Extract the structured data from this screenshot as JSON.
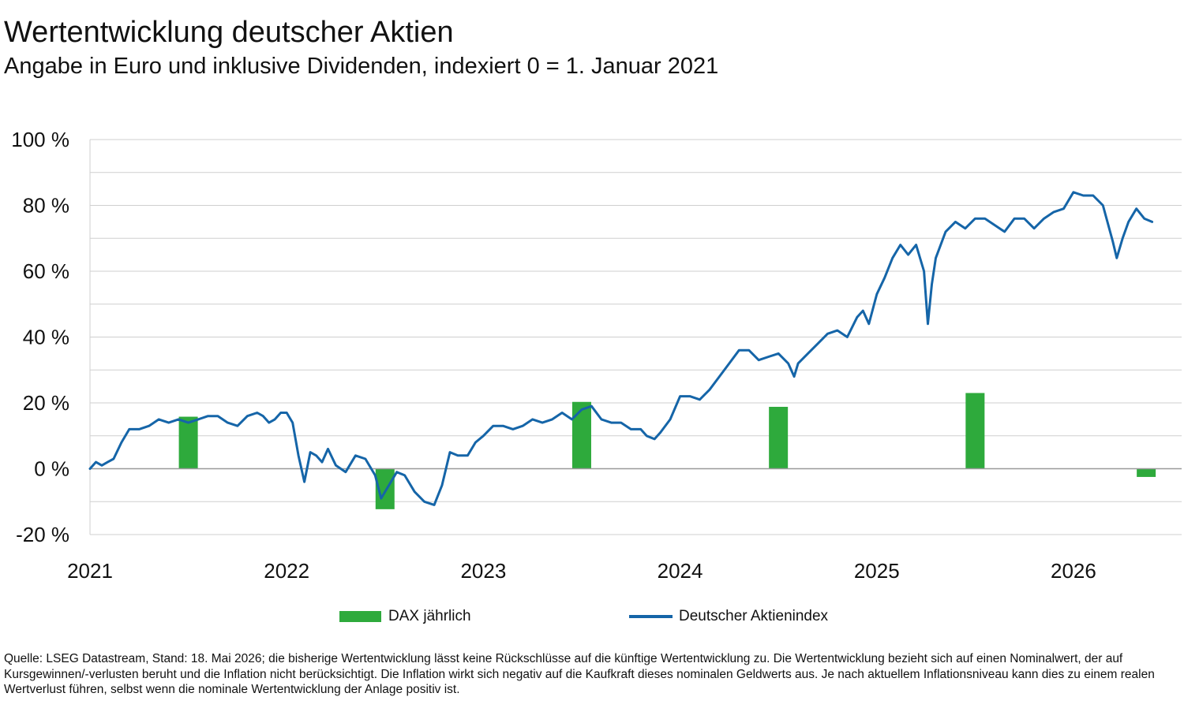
{
  "title": "Wertentwicklung deutscher Aktien",
  "subtitle": "Angabe in Euro und inklusive Dividenden, indexiert 0 = 1. Januar 2021",
  "footnote": "Quelle: LSEG Datastream, Stand: 18. Mai 2026; die bisherige Wertentwicklung lässt keine Rückschlüsse auf die künftige Wertentwicklung zu. Die Wertentwicklung bezieht sich auf einen Nominalwert, der auf Kursgewinnen/-verlusten beruht und die Inflation nicht berücksichtigt. Die Inflation wirkt sich negativ auf die Kaufkraft dieses nominalen Geldwerts aus. Je nach aktuellem Inflationsniveau kann dies zu einem realen Wertverlust führen, selbst wenn die nominale Wertentwicklung der Anlage positiv ist.",
  "legend": {
    "bar_label": "DAX jährlich",
    "line_label": "Deutscher Aktienindex"
  },
  "colors": {
    "bar": "#2eaa3c",
    "line": "#1565a8",
    "grid": "#cfcfcf",
    "zero_line": "#9a9a9a"
  },
  "chart_data": {
    "type": "bar+line",
    "y_unit": "%",
    "ylim": [
      -20,
      100
    ],
    "yticks": [
      -20,
      0,
      20,
      40,
      60,
      80,
      100
    ],
    "ytick_labels": [
      "-20 %",
      "0 %",
      "20 %",
      "40 %",
      "60 %",
      "80 %",
      "100 %"
    ],
    "xlim": [
      2021.0,
      2026.55
    ],
    "xtick_labels": [
      "2021",
      "2022",
      "2023",
      "2024",
      "2025",
      "2026"
    ],
    "grid": true,
    "legend_position": "bottom",
    "bars": {
      "name": "DAX jährlich",
      "x": [
        2021.5,
        2022.5,
        2023.5,
        2024.5,
        2025.5,
        2026.37
      ],
      "values": [
        15.8,
        -12.3,
        20.3,
        18.8,
        23.0,
        -2.5
      ]
    },
    "line": {
      "name": "Deutscher Aktienindex",
      "x": [
        2021.0,
        2021.03,
        2021.06,
        2021.09,
        2021.12,
        2021.16,
        2021.2,
        2021.25,
        2021.3,
        2021.35,
        2021.4,
        2021.45,
        2021.5,
        2021.55,
        2021.6,
        2021.65,
        2021.7,
        2021.75,
        2021.8,
        2021.85,
        2021.88,
        2021.91,
        2021.94,
        2021.97,
        2022.0,
        2022.03,
        2022.06,
        2022.09,
        2022.12,
        2022.15,
        2022.18,
        2022.21,
        2022.25,
        2022.3,
        2022.35,
        2022.4,
        2022.45,
        2022.48,
        2022.52,
        2022.56,
        2022.6,
        2022.65,
        2022.7,
        2022.75,
        2022.79,
        2022.83,
        2022.87,
        2022.92,
        2022.96,
        2023.0,
        2023.05,
        2023.1,
        2023.15,
        2023.2,
        2023.25,
        2023.3,
        2023.35,
        2023.4,
        2023.45,
        2023.5,
        2023.55,
        2023.6,
        2023.65,
        2023.7,
        2023.75,
        2023.8,
        2023.83,
        2023.87,
        2023.9,
        2023.95,
        2024.0,
        2024.05,
        2024.1,
        2024.15,
        2024.2,
        2024.25,
        2024.3,
        2024.35,
        2024.4,
        2024.45,
        2024.5,
        2024.55,
        2024.58,
        2024.6,
        2024.65,
        2024.7,
        2024.75,
        2024.8,
        2024.85,
        2024.9,
        2024.93,
        2024.96,
        2025.0,
        2025.04,
        2025.08,
        2025.12,
        2025.16,
        2025.2,
        2025.24,
        2025.26,
        2025.28,
        2025.3,
        2025.35,
        2025.4,
        2025.45,
        2025.5,
        2025.55,
        2025.6,
        2025.65,
        2025.7,
        2025.75,
        2025.8,
        2025.85,
        2025.9,
        2025.95,
        2026.0,
        2026.05,
        2026.1,
        2026.15,
        2026.2,
        2026.22,
        2026.25,
        2026.28,
        2026.32,
        2026.36,
        2026.4
      ],
      "values": [
        0,
        2,
        1,
        2,
        3,
        8,
        12,
        12,
        13,
        15,
        14,
        15,
        14,
        15,
        16,
        16,
        14,
        13,
        16,
        17,
        16,
        14,
        15,
        17,
        17,
        14,
        4,
        -4,
        5,
        4,
        2,
        6,
        1,
        -1,
        4,
        3,
        -2,
        -9,
        -5,
        -1,
        -2,
        -7,
        -10,
        -11,
        -5,
        5,
        4,
        4,
        8,
        10,
        13,
        13,
        12,
        13,
        15,
        14,
        15,
        17,
        15,
        18,
        19,
        15,
        14,
        14,
        12,
        12,
        10,
        9,
        11,
        15,
        22,
        22,
        21,
        24,
        28,
        32,
        36,
        36,
        33,
        34,
        35,
        32,
        28,
        32,
        35,
        38,
        41,
        42,
        40,
        46,
        48,
        44,
        53,
        58,
        64,
        68,
        65,
        68,
        60,
        44,
        56,
        64,
        72,
        75,
        73,
        76,
        76,
        74,
        72,
        76,
        76,
        73,
        76,
        78,
        79,
        84,
        83,
        83,
        80,
        69,
        64,
        70,
        75,
        79,
        76,
        75
      ]
    }
  }
}
